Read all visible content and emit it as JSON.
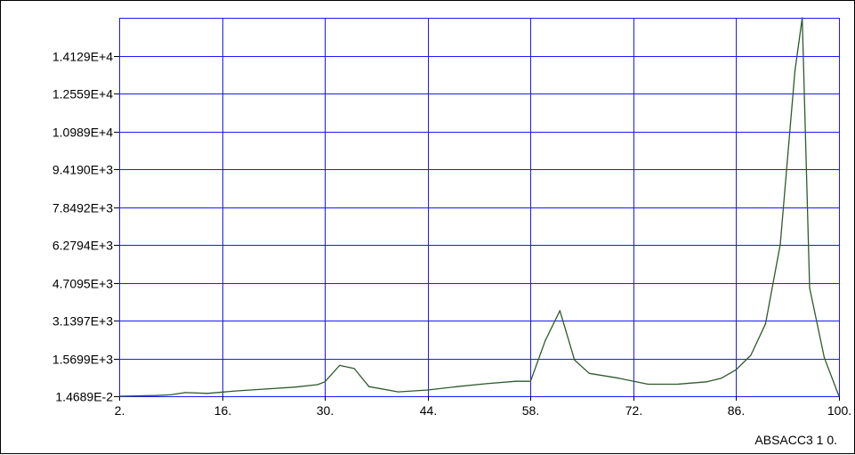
{
  "caption": "ABSACC3 1 0.",
  "chart_data": {
    "type": "line",
    "xlim": [
      2,
      100
    ],
    "ylim": [
      0.014689,
      15700
    ],
    "xticks": [
      "2.",
      "16.",
      "30.",
      "44.",
      "58.",
      "72.",
      "86.",
      "100."
    ],
    "xtick_values": [
      2,
      16,
      30,
      44,
      58,
      72,
      86,
      100
    ],
    "yticks": [
      "1.4689E-2",
      "1.5699E+3",
      "3.1397E+3",
      "4.7095E+3",
      "6.2794E+3",
      "7.8492E+3",
      "9.4190E+3",
      "1.0989E+4",
      "1.2559E+4",
      "1.4129E+4"
    ],
    "ytick_values": [
      0.014689,
      1569.9,
      3139.7,
      4709.5,
      6279.4,
      7849.2,
      9419.0,
      10989,
      12559,
      14129
    ],
    "grid": true,
    "series": [
      {
        "color": "#2d5a2d",
        "x": [
          2,
          7,
          9,
          11,
          14,
          18,
          22,
          26,
          29,
          30,
          32,
          34,
          36,
          40,
          44,
          48,
          52,
          56,
          58,
          60,
          62,
          64,
          66,
          70,
          74,
          78,
          82,
          84,
          86,
          88,
          90,
          92,
          94,
          95,
          96,
          98,
          100
        ],
        "y": [
          0.014689,
          30,
          60,
          150,
          120,
          220,
          300,
          380,
          480,
          600,
          1280,
          1150,
          400,
          180,
          260,
          400,
          520,
          620,
          620,
          2300,
          3550,
          1500,
          950,
          750,
          500,
          500,
          600,
          750,
          1100,
          1700,
          3000,
          6300,
          13500,
          15700,
          4500,
          1600,
          0.014689
        ]
      }
    ]
  }
}
